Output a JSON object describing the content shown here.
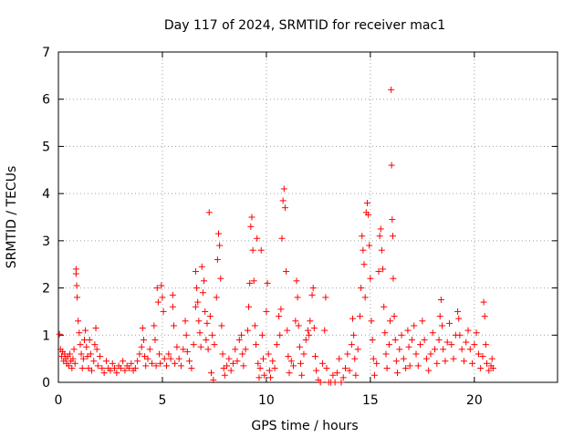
{
  "chart_data": {
    "type": "scatter",
    "title": "Day 117 of 2024, SRMTID for receiver mac1",
    "xlabel": "GPS time / hours",
    "ylabel": "SRMTID / TECUs",
    "xlim": [
      0,
      24
    ],
    "ylim": [
      0,
      7
    ],
    "xticks": [
      0,
      5,
      10,
      15,
      20
    ],
    "yticks": [
      0,
      1,
      2,
      3,
      4,
      5,
      6,
      7
    ],
    "grid": true,
    "marker": "+",
    "color": "#ff0000",
    "series": [
      {
        "name": "mac1",
        "points": [
          [
            0.05,
            1.02
          ],
          [
            0.1,
            0.7
          ],
          [
            0.15,
            0.55
          ],
          [
            0.2,
            0.65
          ],
          [
            0.25,
            0.45
          ],
          [
            0.3,
            0.6
          ],
          [
            0.35,
            0.5
          ],
          [
            0.4,
            0.4
          ],
          [
            0.45,
            0.55
          ],
          [
            0.5,
            0.35
          ],
          [
            0.55,
            0.6
          ],
          [
            0.6,
            0.45
          ],
          [
            0.65,
            0.3
          ],
          [
            0.7,
            0.5
          ],
          [
            0.75,
            0.7
          ],
          [
            0.8,
            0.4
          ],
          [
            0.85,
            2.4
          ],
          [
            0.85,
            2.3
          ],
          [
            0.88,
            2.05
          ],
          [
            0.9,
            1.8
          ],
          [
            0.95,
            1.3
          ],
          [
            1.0,
            1.05
          ],
          [
            1.05,
            0.8
          ],
          [
            1.1,
            0.6
          ],
          [
            1.15,
            0.3
          ],
          [
            1.2,
            0.5
          ],
          [
            1.25,
            0.9
          ],
          [
            1.3,
            1.1
          ],
          [
            1.35,
            0.75
          ],
          [
            1.4,
            0.55
          ],
          [
            1.45,
            0.3
          ],
          [
            1.5,
            0.9
          ],
          [
            1.55,
            0.6
          ],
          [
            1.6,
            0.25
          ],
          [
            1.7,
            0.45
          ],
          [
            1.75,
            0.8
          ],
          [
            1.8,
            1.15
          ],
          [
            1.85,
            0.7
          ],
          [
            1.9,
            0.35
          ],
          [
            2.0,
            0.55
          ],
          [
            2.1,
            0.3
          ],
          [
            2.2,
            0.2
          ],
          [
            2.3,
            0.45
          ],
          [
            2.4,
            0.3
          ],
          [
            2.5,
            0.25
          ],
          [
            2.6,
            0.4
          ],
          [
            2.7,
            0.3
          ],
          [
            2.8,
            0.2
          ],
          [
            2.9,
            0.35
          ],
          [
            3.0,
            0.3
          ],
          [
            3.1,
            0.45
          ],
          [
            3.2,
            0.25
          ],
          [
            3.3,
            0.35
          ],
          [
            3.4,
            0.3
          ],
          [
            3.5,
            0.4
          ],
          [
            3.6,
            0.25
          ],
          [
            3.7,
            0.3
          ],
          [
            3.8,
            0.45
          ],
          [
            3.9,
            0.6
          ],
          [
            4.0,
            0.75
          ],
          [
            4.05,
            1.15
          ],
          [
            4.1,
            0.9
          ],
          [
            4.15,
            0.55
          ],
          [
            4.2,
            0.35
          ],
          [
            4.3,
            0.5
          ],
          [
            4.4,
            0.7
          ],
          [
            4.5,
            0.4
          ],
          [
            4.6,
            1.2
          ],
          [
            4.65,
            0.9
          ],
          [
            4.7,
            0.35
          ],
          [
            4.75,
            2.0
          ],
          [
            4.8,
            1.7
          ],
          [
            4.85,
            0.6
          ],
          [
            4.9,
            0.4
          ],
          [
            4.95,
            2.05
          ],
          [
            5.0,
            1.8
          ],
          [
            5.05,
            1.5
          ],
          [
            5.1,
            0.5
          ],
          [
            5.2,
            0.35
          ],
          [
            5.3,
            0.6
          ],
          [
            5.4,
            0.5
          ],
          [
            5.5,
            1.6
          ],
          [
            5.5,
            1.85
          ],
          [
            5.55,
            1.2
          ],
          [
            5.6,
            0.4
          ],
          [
            5.7,
            0.75
          ],
          [
            5.8,
            0.5
          ],
          [
            5.9,
            0.35
          ],
          [
            6.0,
            0.7
          ],
          [
            6.1,
            1.3
          ],
          [
            6.15,
            1.0
          ],
          [
            6.2,
            0.65
          ],
          [
            6.3,
            0.45
          ],
          [
            6.4,
            0.3
          ],
          [
            6.5,
            0.8
          ],
          [
            6.6,
            1.6
          ],
          [
            6.6,
            2.35
          ],
          [
            6.65,
            2.0
          ],
          [
            6.7,
            1.7
          ],
          [
            6.75,
            1.3
          ],
          [
            6.8,
            1.05
          ],
          [
            6.85,
            0.75
          ],
          [
            6.9,
            2.45
          ],
          [
            6.95,
            1.9
          ],
          [
            7.0,
            2.15
          ],
          [
            7.05,
            1.5
          ],
          [
            7.1,
            0.9
          ],
          [
            7.15,
            1.25
          ],
          [
            7.2,
            0.7
          ],
          [
            7.25,
            3.6
          ],
          [
            7.3,
            1.4
          ],
          [
            7.35,
            0.2
          ],
          [
            7.4,
            1.0
          ],
          [
            7.45,
            0.05
          ],
          [
            7.5,
            0.8
          ],
          [
            7.6,
            1.8
          ],
          [
            7.65,
            2.6
          ],
          [
            7.7,
            3.15
          ],
          [
            7.75,
            2.9
          ],
          [
            7.8,
            2.2
          ],
          [
            7.85,
            1.2
          ],
          [
            7.9,
            0.6
          ],
          [
            7.95,
            0.3
          ],
          [
            8.0,
            0.15
          ],
          [
            8.1,
            0.35
          ],
          [
            8.2,
            0.5
          ],
          [
            8.3,
            0.25
          ],
          [
            8.4,
            0.4
          ],
          [
            8.5,
            0.7
          ],
          [
            8.6,
            0.45
          ],
          [
            8.7,
            0.9
          ],
          [
            8.8,
            1.0
          ],
          [
            8.85,
            0.6
          ],
          [
            8.9,
            0.35
          ],
          [
            9.0,
            0.7
          ],
          [
            9.1,
            1.1
          ],
          [
            9.15,
            1.6
          ],
          [
            9.2,
            2.1
          ],
          [
            9.25,
            3.3
          ],
          [
            9.3,
            3.5
          ],
          [
            9.35,
            2.8
          ],
          [
            9.4,
            2.15
          ],
          [
            9.45,
            1.2
          ],
          [
            9.5,
            0.8
          ],
          [
            9.55,
            3.05
          ],
          [
            9.6,
            0.4
          ],
          [
            9.65,
            0.1
          ],
          [
            9.7,
            0.3
          ],
          [
            9.75,
            2.8
          ],
          [
            9.8,
            1.0
          ],
          [
            9.85,
            0.5
          ],
          [
            9.9,
            0.15
          ],
          [
            10.0,
            1.5
          ],
          [
            10.05,
            2.1
          ],
          [
            10.1,
            0.6
          ],
          [
            10.15,
            0.25
          ],
          [
            10.2,
            0.1
          ],
          [
            10.3,
            0.45
          ],
          [
            10.4,
            0.3
          ],
          [
            10.5,
            0.8
          ],
          [
            10.6,
            1.4
          ],
          [
            10.65,
            1.0
          ],
          [
            10.7,
            1.55
          ],
          [
            10.75,
            3.05
          ],
          [
            10.8,
            3.85
          ],
          [
            10.85,
            4.1
          ],
          [
            10.9,
            3.7
          ],
          [
            10.95,
            2.35
          ],
          [
            11.0,
            1.1
          ],
          [
            11.05,
            0.55
          ],
          [
            11.1,
            0.2
          ],
          [
            11.2,
            0.45
          ],
          [
            11.3,
            0.35
          ],
          [
            11.4,
            1.3
          ],
          [
            11.45,
            2.15
          ],
          [
            11.5,
            1.8
          ],
          [
            11.55,
            1.2
          ],
          [
            11.6,
            0.75
          ],
          [
            11.65,
            0.4
          ],
          [
            11.7,
            0.15
          ],
          [
            11.8,
            0.6
          ],
          [
            11.9,
            0.9
          ],
          [
            12.0,
            1.1
          ],
          [
            12.05,
            1.0
          ],
          [
            12.1,
            1.3
          ],
          [
            12.2,
            1.85
          ],
          [
            12.25,
            2.0
          ],
          [
            12.3,
            1.15
          ],
          [
            12.35,
            0.55
          ],
          [
            12.4,
            0.25
          ],
          [
            12.5,
            0.05
          ],
          [
            12.6,
            0.0
          ],
          [
            12.7,
            0.4
          ],
          [
            12.8,
            1.1
          ],
          [
            12.85,
            1.8
          ],
          [
            12.9,
            0.3
          ],
          [
            13.0,
            0.0
          ],
          [
            13.1,
            0.0
          ],
          [
            13.2,
            0.15
          ],
          [
            13.3,
            0.0
          ],
          [
            13.4,
            0.2
          ],
          [
            13.5,
            0.5
          ],
          [
            13.6,
            0.0
          ],
          [
            13.7,
            0.1
          ],
          [
            13.8,
            0.3
          ],
          [
            13.9,
            0.6
          ],
          [
            14.0,
            0.25
          ],
          [
            14.1,
            0.8
          ],
          [
            14.15,
            1.35
          ],
          [
            14.2,
            1.0
          ],
          [
            14.25,
            0.5
          ],
          [
            14.3,
            0.15
          ],
          [
            14.4,
            0.7
          ],
          [
            14.5,
            1.4
          ],
          [
            14.55,
            2.0
          ],
          [
            14.6,
            3.1
          ],
          [
            14.65,
            2.8
          ],
          [
            14.7,
            2.5
          ],
          [
            14.75,
            1.8
          ],
          [
            14.8,
            3.6
          ],
          [
            14.85,
            3.8
          ],
          [
            14.9,
            3.55
          ],
          [
            14.95,
            2.9
          ],
          [
            15.0,
            2.2
          ],
          [
            15.05,
            1.3
          ],
          [
            15.1,
            0.9
          ],
          [
            15.15,
            0.5
          ],
          [
            15.2,
            0.15
          ],
          [
            15.3,
            0.4
          ],
          [
            15.4,
            2.35
          ],
          [
            15.45,
            3.1
          ],
          [
            15.5,
            3.25
          ],
          [
            15.55,
            2.8
          ],
          [
            15.6,
            2.4
          ],
          [
            15.65,
            1.6
          ],
          [
            15.7,
            1.05
          ],
          [
            15.75,
            0.6
          ],
          [
            15.8,
            0.3
          ],
          [
            15.9,
            0.8
          ],
          [
            15.95,
            1.3
          ],
          [
            16.0,
            6.2
          ],
          [
            16.02,
            4.6
          ],
          [
            16.05,
            3.45
          ],
          [
            16.08,
            3.1
          ],
          [
            16.1,
            2.2
          ],
          [
            16.15,
            1.4
          ],
          [
            16.2,
            0.9
          ],
          [
            16.25,
            0.45
          ],
          [
            16.3,
            0.2
          ],
          [
            16.4,
            0.7
          ],
          [
            16.5,
            1.0
          ],
          [
            16.6,
            0.5
          ],
          [
            16.7,
            0.3
          ],
          [
            16.8,
            1.1
          ],
          [
            16.85,
            0.75
          ],
          [
            16.9,
            0.35
          ],
          [
            17.0,
            0.9
          ],
          [
            17.1,
            1.2
          ],
          [
            17.2,
            0.6
          ],
          [
            17.3,
            0.35
          ],
          [
            17.4,
            0.8
          ],
          [
            17.5,
            1.3
          ],
          [
            17.6,
            0.9
          ],
          [
            17.7,
            0.5
          ],
          [
            17.8,
            0.25
          ],
          [
            17.9,
            0.6
          ],
          [
            18.0,
            1.05
          ],
          [
            18.1,
            0.7
          ],
          [
            18.2,
            0.4
          ],
          [
            18.3,
            0.9
          ],
          [
            18.35,
            1.4
          ],
          [
            18.4,
            1.75
          ],
          [
            18.45,
            1.2
          ],
          [
            18.5,
            0.7
          ],
          [
            18.6,
            0.45
          ],
          [
            18.7,
            0.85
          ],
          [
            18.8,
            1.25
          ],
          [
            18.9,
            0.8
          ],
          [
            19.0,
            0.5
          ],
          [
            19.1,
            1.0
          ],
          [
            19.2,
            1.5
          ],
          [
            19.25,
            1.35
          ],
          [
            19.3,
            1.0
          ],
          [
            19.4,
            0.7
          ],
          [
            19.5,
            0.45
          ],
          [
            19.6,
            0.85
          ],
          [
            19.7,
            1.1
          ],
          [
            19.8,
            0.7
          ],
          [
            19.9,
            0.4
          ],
          [
            20.0,
            0.8
          ],
          [
            20.1,
            1.05
          ],
          [
            20.2,
            0.6
          ],
          [
            20.3,
            0.3
          ],
          [
            20.4,
            0.55
          ],
          [
            20.45,
            1.7
          ],
          [
            20.5,
            1.4
          ],
          [
            20.55,
            0.8
          ],
          [
            20.6,
            0.4
          ],
          [
            20.7,
            0.25
          ],
          [
            20.8,
            0.35
          ],
          [
            20.85,
            0.5
          ],
          [
            20.9,
            0.3
          ]
        ]
      }
    ]
  }
}
